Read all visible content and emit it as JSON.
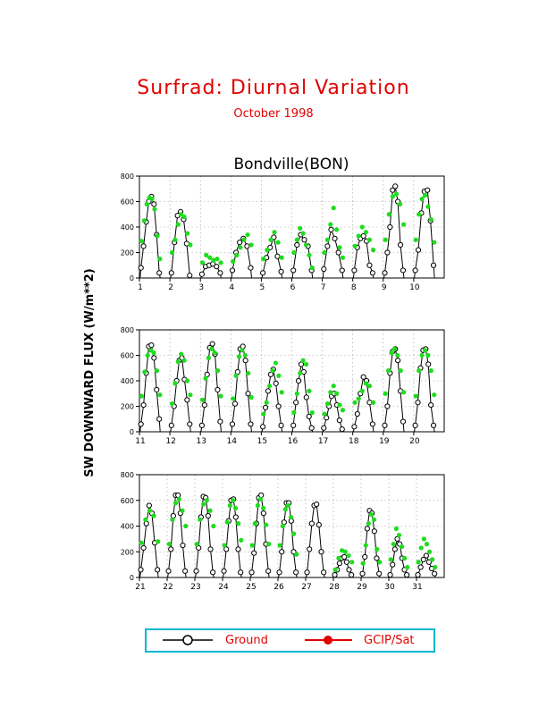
{
  "title": "Surfrad: Diurnal Variation",
  "subtitle": "October 1998",
  "panel_title": "Bondville(BON)",
  "ylabel": "SW DOWNWARD FLUX (W/m**2)",
  "legend": [
    {
      "label": "Ground",
      "marker": "open-circle"
    },
    {
      "label": "GCIP/Sat",
      "marker": "filled-circle"
    }
  ],
  "colors": {
    "title": "#e00000",
    "ground": "#000000",
    "sat_marker": "#1edc1e",
    "sat_legend": "#e00000",
    "legend_border": "#00b8d0",
    "grid": "#999999"
  },
  "chart_data": [
    {
      "type": "line",
      "panel": "days 1-10",
      "xlim": [
        1,
        11
      ],
      "ylim": [
        0,
        800
      ],
      "xticks": [
        1,
        2,
        3,
        4,
        5,
        6,
        7,
        8,
        9,
        10
      ],
      "yticks": [
        0,
        200,
        400,
        600,
        800
      ],
      "grid": true,
      "series": [
        {
          "name": "Ground",
          "days": [
            {
              "day": 1,
              "values": [
                80,
                250,
                440,
                600,
                640,
                580,
                340,
                40
              ]
            },
            {
              "day": 2,
              "values": [
                40,
                280,
                490,
                520,
                460,
                270,
                20
              ]
            },
            {
              "day": 3,
              "values": [
                30,
                90,
                100,
                110,
                90,
                40
              ]
            },
            {
              "day": 4,
              "values": [
                60,
                200,
                280,
                310,
                250,
                80
              ]
            },
            {
              "day": 5,
              "values": [
                40,
                160,
                240,
                320,
                170,
                50
              ]
            },
            {
              "day": 6,
              "values": [
                60,
                260,
                340,
                300,
                250,
                60
              ]
            },
            {
              "day": 7,
              "values": [
                70,
                250,
                380,
                310,
                200,
                60
              ]
            },
            {
              "day": 8,
              "values": [
                60,
                240,
                310,
                330,
                290,
                100,
                40
              ]
            },
            {
              "day": 9,
              "values": [
                40,
                200,
                400,
                690,
                720,
                600,
                260,
                60
              ]
            },
            {
              "day": 10,
              "values": [
                60,
                220,
                510,
                680,
                690,
                450,
                100
              ]
            }
          ]
        },
        {
          "name": "GCIP/Sat",
          "days": [
            {
              "day": 1,
              "values": [
                290,
                450,
                580,
                630,
                620,
                540,
                330,
                150
              ]
            },
            {
              "day": 2,
              "values": [
                200,
                300,
                420,
                500,
                480,
                350,
                260
              ]
            },
            {
              "day": 3,
              "values": [
                120,
                180,
                160,
                140,
                150,
                120
              ]
            },
            {
              "day": 4,
              "values": [
                130,
                180,
                240,
                300,
                340,
                260
              ]
            },
            {
              "day": 5,
              "values": [
                150,
                220,
                300,
                360,
                280,
                160
              ]
            },
            {
              "day": 6,
              "values": [
                200,
                300,
                390,
                350,
                260,
                180,
                80
              ]
            },
            {
              "day": 7,
              "values": [
                200,
                300,
                420,
                550,
                380,
                240,
                160
              ]
            },
            {
              "day": 8,
              "values": [
                250,
                330,
                400,
                360,
                300,
                220
              ]
            },
            {
              "day": 9,
              "values": [
                300,
                500,
                640,
                660,
                580,
                420
              ]
            },
            {
              "day": 10,
              "values": [
                300,
                500,
                620,
                650,
                560,
                460,
                280
              ]
            }
          ]
        }
      ]
    },
    {
      "type": "line",
      "panel": "days 11-20",
      "xlim": [
        11,
        21
      ],
      "ylim": [
        0,
        800
      ],
      "xticks": [
        11,
        12,
        13,
        14,
        15,
        16,
        17,
        18,
        19,
        20
      ],
      "yticks": [
        0,
        200,
        400,
        600,
        800
      ],
      "grid": true,
      "series": [
        {
          "name": "Ground",
          "days": [
            {
              "day": 11,
              "values": [
                60,
                210,
                460,
                670,
                680,
                580,
                330,
                100
              ]
            },
            {
              "day": 12,
              "values": [
                50,
                200,
                400,
                560,
                580,
                410,
                250,
                60
              ]
            },
            {
              "day": 13,
              "values": [
                50,
                210,
                450,
                660,
                690,
                610,
                330,
                80
              ]
            },
            {
              "day": 14,
              "values": [
                60,
                220,
                470,
                650,
                670,
                560,
                300,
                60
              ]
            },
            {
              "day": 15,
              "values": [
                40,
                190,
                320,
                450,
                490,
                380,
                200,
                50
              ]
            },
            {
              "day": 16,
              "values": [
                50,
                230,
                400,
                530,
                470,
                270,
                120,
                30
              ]
            },
            {
              "day": 17,
              "values": [
                30,
                110,
                200,
                280,
                300,
                210,
                90,
                20
              ]
            },
            {
              "day": 18,
              "values": [
                40,
                140,
                300,
                430,
                400,
                230,
                60
              ]
            },
            {
              "day": 19,
              "values": [
                50,
                200,
                460,
                630,
                650,
                560,
                320,
                80
              ]
            },
            {
              "day": 20,
              "values": [
                50,
                230,
                500,
                640,
                650,
                530,
                210,
                50
              ]
            }
          ]
        },
        {
          "name": "GCIP/Sat",
          "days": [
            {
              "day": 11,
              "values": [
                280,
                470,
                600,
                640,
                620,
                480,
                290
              ]
            },
            {
              "day": 12,
              "values": [
                220,
                380,
                550,
                610,
                560,
                400,
                290
              ]
            },
            {
              "day": 13,
              "values": [
                250,
                420,
                580,
                650,
                620,
                480,
                280
              ]
            },
            {
              "day": 14,
              "values": [
                260,
                440,
                590,
                640,
                600,
                460,
                270
              ]
            },
            {
              "day": 15,
              "values": [
                140,
                230,
                360,
                480,
                540,
                440,
                310
              ]
            },
            {
              "day": 16,
              "values": [
                150,
                300,
                460,
                560,
                530,
                320,
                150
              ]
            },
            {
              "day": 17,
              "values": [
                140,
                220,
                310,
                360,
                300,
                210,
                170
              ]
            },
            {
              "day": 18,
              "values": [
                230,
                260,
                320,
                380,
                360,
                230
              ]
            },
            {
              "day": 19,
              "values": [
                300,
                480,
                620,
                650,
                600,
                480,
                310
              ]
            },
            {
              "day": 20,
              "values": [
                280,
                480,
                600,
                640,
                600,
                480,
                290
              ]
            }
          ]
        }
      ]
    },
    {
      "type": "line",
      "panel": "days 21-31",
      "xlim": [
        21,
        32
      ],
      "ylim": [
        0,
        800
      ],
      "xticks": [
        21,
        22,
        23,
        24,
        25,
        26,
        27,
        28,
        29,
        30,
        31
      ],
      "yticks": [
        0,
        200,
        400,
        600,
        800
      ],
      "grid": true,
      "series": [
        {
          "name": "Ground",
          "days": [
            {
              "day": 21,
              "values": [
                60,
                230,
                420,
                560,
                500,
                270,
                60
              ]
            },
            {
              "day": 22,
              "values": [
                50,
                220,
                480,
                640,
                640,
                500,
                250,
                50
              ]
            },
            {
              "day": 23,
              "values": [
                50,
                230,
                470,
                630,
                620,
                480,
                220,
                40
              ]
            },
            {
              "day": 24,
              "values": [
                50,
                220,
                440,
                600,
                610,
                470,
                220,
                40
              ]
            },
            {
              "day": 25,
              "values": [
                40,
                190,
                420,
                620,
                640,
                500,
                260,
                50
              ]
            },
            {
              "day": 26,
              "values": [
                40,
                200,
                430,
                580,
                580,
                440,
                200,
                40
              ]
            },
            {
              "day": 27,
              "values": [
                40,
                220,
                420,
                560,
                570,
                410,
                200,
                40
              ]
            },
            {
              "day": 28,
              "values": [
                20,
                60,
                110,
                150,
                160,
                120,
                60,
                20
              ]
            },
            {
              "day": 29,
              "values": [
                30,
                160,
                380,
                520,
                500,
                360,
                150,
                30
              ]
            },
            {
              "day": 30,
              "values": [
                20,
                100,
                220,
                300,
                260,
                150,
                60,
                20
              ]
            },
            {
              "day": 31,
              "values": [
                20,
                80,
                140,
                170,
                120,
                70,
                30
              ]
            }
          ]
        },
        {
          "name": "GCIP/Sat",
          "days": [
            {
              "day": 21,
              "values": [
                270,
                450,
                520,
                480,
                280
              ]
            },
            {
              "day": 22,
              "values": [
                260,
                450,
                580,
                610,
                520,
                400
              ]
            },
            {
              "day": 23,
              "values": [
                260,
                450,
                570,
                600,
                520,
                400
              ]
            },
            {
              "day": 24,
              "values": [
                250,
                430,
                560,
                600,
                540,
                420,
                290
              ]
            },
            {
              "day": 25,
              "values": [
                250,
                420,
                560,
                610,
                540,
                410,
                260
              ]
            },
            {
              "day": 26,
              "values": [
                250,
                400,
                530,
                560,
                470,
                340,
                180
              ]
            },
            {
              "day": 27,
              "values": []
            },
            {
              "day": 28,
              "values": [
                60,
                150,
                210,
                200,
                170,
                120
              ]
            },
            {
              "day": 29,
              "values": [
                110,
                250,
                420,
                490,
                450,
                220,
                120
              ]
            },
            {
              "day": 30,
              "values": [
                140,
                260,
                380,
                330,
                240,
                150,
                80
              ]
            },
            {
              "day": 31,
              "values": [
                120,
                230,
                300,
                260,
                200,
                140,
                80
              ]
            }
          ]
        }
      ]
    }
  ]
}
